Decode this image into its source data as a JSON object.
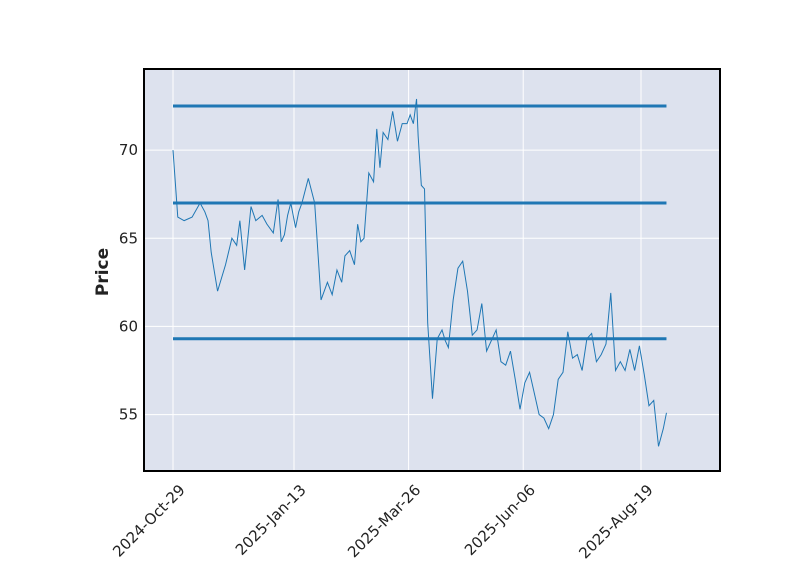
{
  "chart_data": {
    "type": "line",
    "title": "",
    "xlabel": "",
    "ylabel": "Price",
    "ylim": [
      51.8,
      74.6
    ],
    "x_tick_labels": [
      "2024-Oct-29",
      "2025-Jan-13",
      "2025-Mar-26",
      "2025-Jun-06",
      "2025-Aug-19"
    ],
    "y_ticks": [
      55,
      60,
      65,
      70
    ],
    "grid": true,
    "legend": "none",
    "colors": {
      "background": "#dde2ee",
      "line": "#1f77b4",
      "hline": "#1f77b4",
      "grid": "#ffffff",
      "frame": "#000000"
    },
    "series": [
      {
        "x": [
          "2024-10-29",
          "2024-11-01",
          "2024-11-05",
          "2024-11-10",
          "2024-11-15",
          "2024-11-18",
          "2024-11-20",
          "2024-11-22",
          "2024-11-26",
          "2024-12-01",
          "2024-12-05",
          "2024-12-08",
          "2024-12-10",
          "2024-12-13",
          "2024-12-17",
          "2024-12-20",
          "2024-12-24",
          "2024-12-27",
          "2024-12-31",
          "2025-01-03",
          "2025-01-05",
          "2025-01-07",
          "2025-01-09",
          "2025-01-11",
          "2025-01-14",
          "2025-01-16",
          "2025-01-18",
          "2025-01-22",
          "2025-01-26",
          "2025-01-30",
          "2025-02-03",
          "2025-02-06",
          "2025-02-09",
          "2025-02-12",
          "2025-02-14",
          "2025-02-17",
          "2025-02-20",
          "2025-02-22",
          "2025-02-24",
          "2025-02-26",
          "2025-03-01",
          "2025-03-04",
          "2025-03-06",
          "2025-03-08",
          "2025-03-10",
          "2025-03-13",
          "2025-03-16",
          "2025-03-19",
          "2025-03-22",
          "2025-03-25",
          "2025-03-27",
          "2025-03-29",
          "2025-03-31",
          "2025-04-01",
          "2025-04-03",
          "2025-04-05",
          "2025-04-07",
          "2025-04-10",
          "2025-04-13",
          "2025-04-16",
          "2025-04-18",
          "2025-04-20",
          "2025-04-23",
          "2025-04-26",
          "2025-04-29",
          "2025-05-02",
          "2025-05-05",
          "2025-05-08",
          "2025-05-11",
          "2025-05-14",
          "2025-05-17",
          "2025-05-20",
          "2025-05-23",
          "2025-05-26",
          "2025-05-29",
          "2025-06-01",
          "2025-06-04",
          "2025-06-07",
          "2025-06-10",
          "2025-06-13",
          "2025-06-16",
          "2025-06-19",
          "2025-06-22",
          "2025-06-25",
          "2025-06-28",
          "2025-07-01",
          "2025-07-04",
          "2025-07-07",
          "2025-07-10",
          "2025-07-13",
          "2025-07-16",
          "2025-07-19",
          "2025-07-22",
          "2025-07-25",
          "2025-07-28",
          "2025-07-31",
          "2025-08-03",
          "2025-08-06",
          "2025-08-09",
          "2025-08-12",
          "2025-08-15",
          "2025-08-18",
          "2025-08-21",
          "2025-08-24",
          "2025-08-27",
          "2025-08-30",
          "2025-09-02",
          "2025-09-04"
        ],
        "values": [
          70.0,
          66.2,
          66.0,
          66.2,
          67.0,
          66.5,
          66.0,
          64.2,
          62.0,
          63.5,
          65.0,
          64.6,
          66.0,
          63.2,
          66.8,
          66.0,
          66.3,
          65.8,
          65.3,
          67.2,
          64.8,
          65.2,
          66.3,
          67.0,
          65.6,
          66.5,
          67.0,
          68.4,
          67.0,
          61.5,
          62.5,
          61.8,
          63.2,
          62.5,
          64.0,
          64.3,
          63.5,
          65.8,
          64.8,
          65.0,
          68.7,
          68.2,
          71.2,
          69.0,
          71.0,
          70.6,
          72.2,
          70.5,
          71.5,
          71.5,
          72.0,
          71.5,
          72.9,
          70.8,
          68.0,
          67.8,
          60.2,
          55.9,
          59.3,
          59.8,
          59.2,
          58.8,
          61.5,
          63.3,
          63.7,
          62.0,
          59.5,
          59.8,
          61.3,
          58.6,
          59.2,
          59.8,
          58.0,
          57.8,
          58.6,
          57.0,
          55.3,
          56.8,
          57.4,
          56.2,
          55.0,
          54.8,
          54.2,
          55.0,
          57.0,
          57.4,
          59.7,
          58.2,
          58.4,
          57.5,
          59.3,
          59.6,
          58.0,
          58.4,
          59.0,
          61.9,
          57.5,
          58.0,
          57.5,
          58.7,
          57.5,
          58.9,
          57.3,
          55.5,
          55.8,
          53.2,
          54.2,
          55.1
        ]
      }
    ],
    "hlines": [
      72.5,
      67.0,
      59.3
    ]
  }
}
